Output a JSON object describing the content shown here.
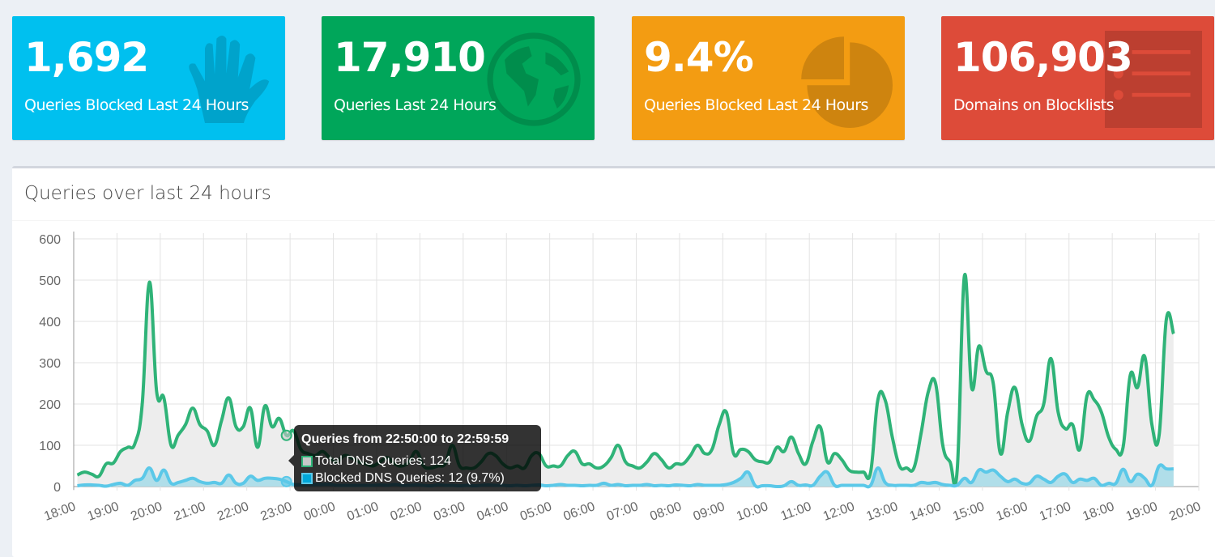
{
  "stats": [
    {
      "value": "1,692",
      "label": "Queries Blocked Last 24 Hours",
      "color": "#00c0ef",
      "icon": "hand-icon"
    },
    {
      "value": "17,910",
      "label": "Queries Last 24 Hours",
      "color": "#00a65a",
      "icon": "globe-icon"
    },
    {
      "value": "9.4%",
      "label": "Queries Blocked Last 24 Hours",
      "color": "#f39c12",
      "icon": "pie-chart-icon"
    },
    {
      "value": "106,903",
      "label": "Domains on Blocklists",
      "color": "#dd4b39",
      "icon": "list-icon"
    }
  ],
  "panel": {
    "title": "Queries over last 24 hours"
  },
  "tooltip": {
    "title": "Queries from 22:50:00 to 22:59:59",
    "total": "Total DNS Queries: 124",
    "blocked": "Blocked DNS Queries: 12 (9.7%)"
  },
  "chart_data": {
    "type": "area",
    "title": "Queries over last 24 hours",
    "ylim": [
      0,
      600
    ],
    "yticks": [
      "0",
      "100",
      "200",
      "300",
      "400",
      "500",
      "600"
    ],
    "xticks": [
      "18:00",
      "19:00",
      "20:00",
      "21:00",
      "22:00",
      "23:00",
      "00:00",
      "01:00",
      "02:00",
      "03:00",
      "04:00",
      "05:00",
      "06:00",
      "07:00",
      "08:00",
      "09:00",
      "10:00",
      "11:00",
      "12:00",
      "13:00",
      "14:00",
      "15:00",
      "16:00",
      "17:00",
      "18:00",
      "19:00",
      "20:00"
    ],
    "interval_minutes": 10,
    "start": "18:00",
    "series": [
      {
        "name": "Total DNS Queries",
        "color": "#2fb378",
        "fill": "#ededed",
        "values": [
          28,
          35,
          30,
          25,
          55,
          57,
          85,
          95,
          105,
          200,
          495,
          230,
          215,
          100,
          125,
          150,
          190,
          150,
          135,
          100,
          160,
          215,
          145,
          145,
          190,
          95,
          195,
          145,
          165,
          124,
          135,
          90,
          80,
          75,
          85,
          70,
          60,
          75,
          70,
          60,
          55,
          50,
          60,
          70,
          55,
          50,
          60,
          85,
          50,
          45,
          50,
          55,
          100,
          50,
          45,
          45,
          60,
          80,
          75,
          55,
          45,
          50,
          45,
          75,
          80,
          50,
          50,
          50,
          75,
          85,
          55,
          55,
          45,
          50,
          70,
          100,
          60,
          50,
          45,
          60,
          80,
          65,
          45,
          55,
          55,
          75,
          100,
          80,
          90,
          150,
          180,
          80,
          90,
          85,
          65,
          60,
          60,
          95,
          85,
          120,
          80,
          55,
          110,
          145,
          60,
          80,
          65,
          40,
          35,
          35,
          35,
          210,
          210,
          120,
          50,
          45,
          45,
          130,
          230,
          250,
          100,
          60,
          40,
          510,
          240,
          340,
          280,
          250,
          80,
          180,
          240,
          150,
          110,
          170,
          200,
          310,
          180,
          140,
          150,
          90,
          220,
          210,
          180,
          120,
          90,
          95,
          270,
          240,
          315,
          150,
          125,
          405,
          370
        ]
      },
      {
        "name": "Blocked DNS Queries",
        "color": "#5bc8e8",
        "fill": "#a8dbe8",
        "values": [
          2,
          4,
          4,
          3,
          1,
          5,
          8,
          3,
          15,
          20,
          45,
          15,
          40,
          8,
          10,
          15,
          20,
          12,
          8,
          10,
          8,
          28,
          8,
          8,
          25,
          15,
          20,
          20,
          18,
          12,
          5,
          5,
          5,
          5,
          5,
          5,
          3,
          3,
          3,
          3,
          3,
          3,
          4,
          3,
          5,
          3,
          3,
          4,
          3,
          2,
          4,
          3,
          3,
          2,
          3,
          2,
          3,
          4,
          3,
          3,
          2,
          3,
          2,
          3,
          4,
          2,
          3,
          5,
          3,
          3,
          2,
          3,
          3,
          8,
          3,
          5,
          2,
          3,
          3,
          5,
          2,
          3,
          2,
          4,
          3,
          2,
          5,
          3,
          3,
          3,
          5,
          10,
          20,
          35,
          2,
          2,
          2,
          0,
          2,
          12,
          3,
          4,
          3,
          25,
          35,
          3,
          3,
          3,
          3,
          3,
          3,
          45,
          10,
          3,
          3,
          3,
          3,
          10,
          8,
          10,
          5,
          3,
          3,
          20,
          10,
          40,
          35,
          40,
          25,
          12,
          18,
          8,
          8,
          25,
          18,
          10,
          25,
          30,
          10,
          18,
          15,
          20,
          3,
          8,
          8,
          42,
          12,
          30,
          20,
          3,
          50,
          43,
          43
        ]
      }
    ],
    "highlight": {
      "time": "22:50",
      "total": 124,
      "blocked": 12
    }
  }
}
